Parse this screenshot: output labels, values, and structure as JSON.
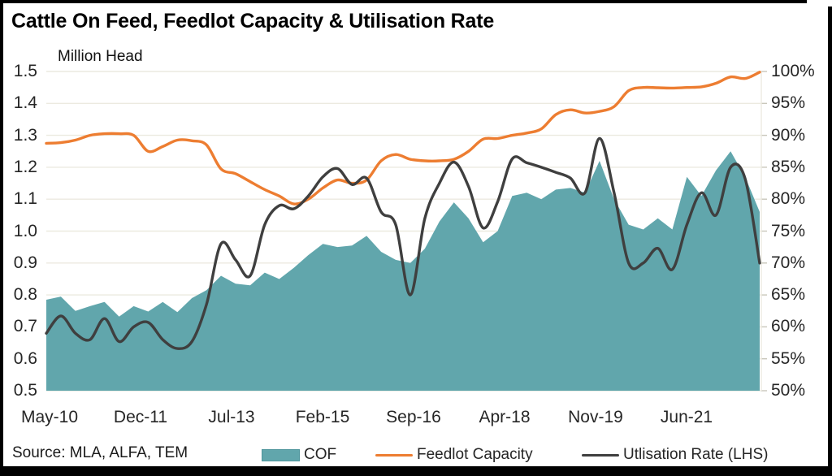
{
  "title": "Cattle On Feed, Feedlot Capacity & Utilisation Rate",
  "axis_left_label": "Million Head",
  "source": "Source: MLA, ALFA, TEM",
  "colors": {
    "cof_area": "#61A6AC",
    "cof_swatch_border": "#4E959C",
    "capacity_line": "#ED7D31",
    "utilisation_line": "#3F3F3F",
    "gridline": "#ECEAE0",
    "right_axis_tick": "#C9C7BB"
  },
  "legend": [
    {
      "label": "COF",
      "type": "area"
    },
    {
      "label": "Feedlot Capacity",
      "type": "line"
    },
    {
      "label": "Utlisation Rate (LHS)",
      "type": "line"
    }
  ],
  "chart_data": {
    "type": "area+line combo, dual axis",
    "title": "Cattle On Feed, Feedlot Capacity & Utilisation Rate",
    "ylabel_left": "Million Head",
    "y_left_ticks": [
      "1.5",
      "1.4",
      "1.3",
      "1.2",
      "1.1",
      "1.0",
      "0.9",
      "0.8",
      "0.7",
      "0.6",
      "0.5"
    ],
    "y_right_ticks": [
      "100%",
      "95%",
      "90%",
      "85%",
      "80%",
      "75%",
      "70%",
      "65%",
      "60%",
      "55%",
      "50%"
    ],
    "y_left_range": [
      0.5,
      1.5
    ],
    "y_right_range": [
      50,
      100
    ],
    "x_tick_labels": [
      "May-10",
      "Dec-11",
      "Jul-13",
      "Feb-15",
      "Sep-16",
      "Apr-18",
      "Nov-19",
      "Jun-21"
    ],
    "grid": "horizontal only",
    "legend_position": "bottom",
    "categories": [
      "May-10",
      "Aug-10",
      "Nov-10",
      "Feb-11",
      "May-11",
      "Aug-11",
      "Nov-11",
      "Feb-12",
      "May-12",
      "Aug-12",
      "Nov-12",
      "Feb-13",
      "May-13",
      "Aug-13",
      "Nov-13",
      "Feb-14",
      "May-14",
      "Aug-14",
      "Nov-14",
      "Feb-15",
      "May-15",
      "Aug-15",
      "Nov-15",
      "Feb-16",
      "May-16",
      "Aug-16",
      "Nov-16",
      "Feb-17",
      "May-17",
      "Aug-17",
      "Nov-17",
      "Feb-18",
      "May-18",
      "Aug-18",
      "Nov-18",
      "Feb-19",
      "May-19",
      "Aug-19",
      "Nov-19",
      "Feb-20",
      "May-20",
      "Aug-20",
      "Nov-20",
      "Feb-21",
      "May-21",
      "Aug-21",
      "Nov-21",
      "Feb-22",
      "May-22",
      "Aug-22"
    ],
    "series": [
      {
        "name": "COF",
        "style": "area",
        "axis": "left",
        "unit": "million head",
        "values": [
          0.785,
          0.795,
          0.75,
          0.765,
          0.778,
          0.732,
          0.765,
          0.748,
          0.778,
          0.746,
          0.79,
          0.815,
          0.86,
          0.835,
          0.83,
          0.87,
          0.85,
          0.885,
          0.925,
          0.96,
          0.95,
          0.955,
          0.985,
          0.935,
          0.91,
          0.9,
          0.945,
          1.03,
          1.09,
          1.04,
          0.965,
          1.0,
          1.11,
          1.12,
          1.1,
          1.13,
          1.135,
          1.12,
          1.22,
          1.1,
          1.02,
          1.005,
          1.04,
          1.005,
          1.17,
          1.11,
          1.19,
          1.25,
          1.17,
          1.06
        ]
      },
      {
        "name": "Feedlot Capacity",
        "style": "smooth line",
        "axis": "left",
        "unit": "million head",
        "values": [
          1.275,
          1.277,
          1.285,
          1.3,
          1.305,
          1.305,
          1.3,
          1.25,
          1.265,
          1.285,
          1.283,
          1.27,
          1.195,
          1.18,
          1.155,
          1.13,
          1.11,
          1.085,
          1.1,
          1.135,
          1.16,
          1.15,
          1.16,
          1.22,
          1.24,
          1.225,
          1.22,
          1.22,
          1.225,
          1.25,
          1.288,
          1.29,
          1.3,
          1.307,
          1.32,
          1.365,
          1.38,
          1.37,
          1.375,
          1.39,
          1.44,
          1.45,
          1.449,
          1.448,
          1.45,
          1.452,
          1.463,
          1.483,
          1.478,
          1.498
        ]
      },
      {
        "name": "Utlisation Rate (LHS)",
        "style": "smooth line",
        "axis": "right",
        "unit": "%",
        "values": [
          59,
          61.7,
          59,
          58,
          61.3,
          57.7,
          60,
          60.7,
          58,
          56.6,
          57.7,
          63.5,
          73,
          70.5,
          68,
          76,
          79,
          78.5,
          80.5,
          83.5,
          84.8,
          82.3,
          83.3,
          78,
          76,
          65,
          77,
          82.5,
          85.8,
          82,
          75.5,
          79.6,
          86.3,
          85.7,
          85,
          84.2,
          83.3,
          81,
          89.5,
          81,
          70,
          70,
          72.3,
          69,
          76,
          81,
          77.5,
          85,
          83.2,
          70
        ]
      }
    ]
  }
}
